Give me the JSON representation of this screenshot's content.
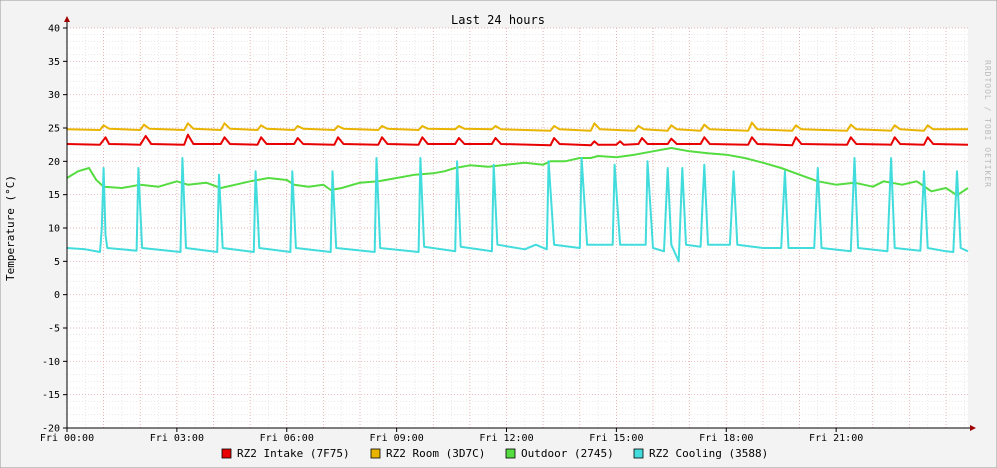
{
  "chart_data": {
    "type": "line",
    "title": "Last 24 hours",
    "ylabel": "Temperature (°C)",
    "xlabel": "",
    "watermark": "RRDTOOL / TOBI OETIKER",
    "ylim": [
      -20,
      40
    ],
    "y_ticks": [
      -20,
      -15,
      -10,
      -5,
      0,
      5,
      10,
      15,
      20,
      25,
      30,
      35,
      40
    ],
    "xlim_hours": [
      0,
      24.6
    ],
    "x_ticks": [
      {
        "hour": 0,
        "label": "Fri 00:00"
      },
      {
        "hour": 3,
        "label": "Fri 03:00"
      },
      {
        "hour": 6,
        "label": "Fri 06:00"
      },
      {
        "hour": 9,
        "label": "Fri 09:00"
      },
      {
        "hour": 12,
        "label": "Fri 12:00"
      },
      {
        "hour": 15,
        "label": "Fri 15:00"
      },
      {
        "hour": 18,
        "label": "Fri 18:00"
      },
      {
        "hour": 21,
        "label": "Fri 21:00"
      }
    ],
    "grid": true,
    "legend_position": "bottom",
    "series": [
      {
        "name": "RZ2 Intake (7F75)",
        "color": "#e80000",
        "points": [
          [
            0,
            22.6
          ],
          [
            0.9,
            22.5
          ],
          [
            1.05,
            23.6
          ],
          [
            1.15,
            22.6
          ],
          [
            2.0,
            22.5
          ],
          [
            2.15,
            23.8
          ],
          [
            2.3,
            22.6
          ],
          [
            3.2,
            22.5
          ],
          [
            3.3,
            24.0
          ],
          [
            3.45,
            22.6
          ],
          [
            4.2,
            22.6
          ],
          [
            4.3,
            23.6
          ],
          [
            4.45,
            22.6
          ],
          [
            5.2,
            22.5
          ],
          [
            5.3,
            23.6
          ],
          [
            5.45,
            22.6
          ],
          [
            6.2,
            22.6
          ],
          [
            6.3,
            23.5
          ],
          [
            6.45,
            22.6
          ],
          [
            7.3,
            22.5
          ],
          [
            7.4,
            23.6
          ],
          [
            7.55,
            22.6
          ],
          [
            8.5,
            22.5
          ],
          [
            8.6,
            23.6
          ],
          [
            8.75,
            22.6
          ],
          [
            9.6,
            22.5
          ],
          [
            9.7,
            23.6
          ],
          [
            9.85,
            22.6
          ],
          [
            10.6,
            22.6
          ],
          [
            10.7,
            23.5
          ],
          [
            10.85,
            22.6
          ],
          [
            11.6,
            22.6
          ],
          [
            11.7,
            23.5
          ],
          [
            11.85,
            22.6
          ],
          [
            13.2,
            22.4
          ],
          [
            13.3,
            23.5
          ],
          [
            13.45,
            22.6
          ],
          [
            14.3,
            22.4
          ],
          [
            14.4,
            23.0
          ],
          [
            14.5,
            22.5
          ],
          [
            15.0,
            22.5
          ],
          [
            15.1,
            23.0
          ],
          [
            15.2,
            22.5
          ],
          [
            15.6,
            22.6
          ],
          [
            15.7,
            23.5
          ],
          [
            15.85,
            22.6
          ],
          [
            16.4,
            22.6
          ],
          [
            16.5,
            23.4
          ],
          [
            16.65,
            22.6
          ],
          [
            17.3,
            22.6
          ],
          [
            17.4,
            23.6
          ],
          [
            17.55,
            22.6
          ],
          [
            18.6,
            22.5
          ],
          [
            18.7,
            23.6
          ],
          [
            18.85,
            22.6
          ],
          [
            19.8,
            22.4
          ],
          [
            19.9,
            23.6
          ],
          [
            20.05,
            22.6
          ],
          [
            21.3,
            22.5
          ],
          [
            21.4,
            23.6
          ],
          [
            21.55,
            22.6
          ],
          [
            22.5,
            22.5
          ],
          [
            22.6,
            23.6
          ],
          [
            22.75,
            22.6
          ],
          [
            23.4,
            22.5
          ],
          [
            23.5,
            23.6
          ],
          [
            23.65,
            22.6
          ],
          [
            24.6,
            22.5
          ]
        ]
      },
      {
        "name": "RZ2 Room (3D7C)",
        "color": "#e8b400",
        "points": [
          [
            0,
            24.8
          ],
          [
            0.9,
            24.7
          ],
          [
            1.0,
            25.4
          ],
          [
            1.15,
            24.9
          ],
          [
            2.0,
            24.7
          ],
          [
            2.1,
            25.5
          ],
          [
            2.25,
            24.9
          ],
          [
            3.2,
            24.7
          ],
          [
            3.3,
            25.7
          ],
          [
            3.45,
            24.9
          ],
          [
            4.2,
            24.7
          ],
          [
            4.3,
            25.7
          ],
          [
            4.45,
            24.9
          ],
          [
            5.2,
            24.7
          ],
          [
            5.3,
            25.4
          ],
          [
            5.45,
            24.9
          ],
          [
            6.2,
            24.7
          ],
          [
            6.3,
            25.3
          ],
          [
            6.45,
            24.9
          ],
          [
            7.3,
            24.7
          ],
          [
            7.4,
            25.3
          ],
          [
            7.55,
            24.9
          ],
          [
            8.5,
            24.7
          ],
          [
            8.6,
            25.3
          ],
          [
            8.75,
            24.9
          ],
          [
            9.6,
            24.7
          ],
          [
            9.7,
            25.3
          ],
          [
            9.85,
            24.9
          ],
          [
            10.6,
            24.8
          ],
          [
            10.7,
            25.3
          ],
          [
            10.85,
            24.9
          ],
          [
            11.6,
            24.8
          ],
          [
            11.7,
            25.3
          ],
          [
            11.85,
            24.8
          ],
          [
            13.2,
            24.6
          ],
          [
            13.3,
            25.3
          ],
          [
            13.45,
            24.8
          ],
          [
            14.3,
            24.6
          ],
          [
            14.4,
            25.7
          ],
          [
            14.55,
            24.8
          ],
          [
            15.5,
            24.6
          ],
          [
            15.6,
            25.3
          ],
          [
            15.75,
            24.8
          ],
          [
            16.4,
            24.6
          ],
          [
            16.5,
            25.4
          ],
          [
            16.65,
            24.8
          ],
          [
            17.3,
            24.6
          ],
          [
            17.4,
            25.5
          ],
          [
            17.55,
            24.8
          ],
          [
            18.6,
            24.6
          ],
          [
            18.7,
            25.8
          ],
          [
            18.85,
            24.8
          ],
          [
            19.8,
            24.6
          ],
          [
            19.9,
            25.4
          ],
          [
            20.05,
            24.8
          ],
          [
            21.3,
            24.6
          ],
          [
            21.4,
            25.5
          ],
          [
            21.55,
            24.8
          ],
          [
            22.5,
            24.6
          ],
          [
            22.6,
            25.4
          ],
          [
            22.75,
            24.8
          ],
          [
            23.4,
            24.6
          ],
          [
            23.5,
            25.4
          ],
          [
            23.65,
            24.8
          ],
          [
            24.6,
            24.8
          ]
        ]
      },
      {
        "name": "Outdoor (2745)",
        "color": "#54dc40",
        "points": [
          [
            0,
            17.5
          ],
          [
            0.3,
            18.5
          ],
          [
            0.6,
            19.0
          ],
          [
            0.8,
            17.2
          ],
          [
            1.0,
            16.2
          ],
          [
            1.5,
            16.0
          ],
          [
            2.0,
            16.5
          ],
          [
            2.5,
            16.2
          ],
          [
            3.0,
            17.0
          ],
          [
            3.3,
            16.5
          ],
          [
            3.8,
            16.8
          ],
          [
            4.2,
            16.0
          ],
          [
            4.6,
            16.5
          ],
          [
            5.0,
            17.0
          ],
          [
            5.5,
            17.5
          ],
          [
            6.0,
            17.2
          ],
          [
            6.2,
            16.5
          ],
          [
            6.6,
            16.2
          ],
          [
            7.0,
            16.5
          ],
          [
            7.2,
            15.7
          ],
          [
            7.5,
            16.0
          ],
          [
            8.0,
            16.8
          ],
          [
            8.5,
            17.0
          ],
          [
            9.0,
            17.5
          ],
          [
            9.5,
            18.0
          ],
          [
            10.0,
            18.2
          ],
          [
            10.3,
            18.5
          ],
          [
            10.6,
            19.0
          ],
          [
            11.0,
            19.4
          ],
          [
            11.5,
            19.2
          ],
          [
            12.0,
            19.5
          ],
          [
            12.5,
            19.8
          ],
          [
            13.0,
            19.5
          ],
          [
            13.2,
            20.0
          ],
          [
            13.6,
            20.0
          ],
          [
            14.0,
            20.5
          ],
          [
            14.3,
            20.5
          ],
          [
            14.5,
            20.8
          ],
          [
            15.0,
            20.6
          ],
          [
            15.5,
            21.0
          ],
          [
            16.0,
            21.5
          ],
          [
            16.5,
            22.0
          ],
          [
            17.0,
            21.5
          ],
          [
            17.5,
            21.2
          ],
          [
            18.0,
            21.0
          ],
          [
            18.5,
            20.5
          ],
          [
            19.0,
            19.8
          ],
          [
            19.5,
            19.0
          ],
          [
            20.0,
            18.0
          ],
          [
            20.5,
            17.0
          ],
          [
            21.0,
            16.5
          ],
          [
            21.5,
            16.8
          ],
          [
            22.0,
            16.2
          ],
          [
            22.3,
            17.0
          ],
          [
            22.8,
            16.5
          ],
          [
            23.2,
            17.0
          ],
          [
            23.6,
            15.5
          ],
          [
            24.0,
            16.0
          ],
          [
            24.3,
            14.9
          ],
          [
            24.6,
            16.0
          ]
        ]
      },
      {
        "name": "RZ2 Cooling (3588)",
        "color": "#42dcdc",
        "points": [
          [
            0,
            7.0
          ],
          [
            0.5,
            6.8
          ],
          [
            0.9,
            6.4
          ],
          [
            0.95,
            10.0
          ],
          [
            1.0,
            19.0
          ],
          [
            1.05,
            9.0
          ],
          [
            1.1,
            7.0
          ],
          [
            1.9,
            6.6
          ],
          [
            1.95,
            19.0
          ],
          [
            2.05,
            7.0
          ],
          [
            3.1,
            6.4
          ],
          [
            3.15,
            20.5
          ],
          [
            3.25,
            7.0
          ],
          [
            4.1,
            6.4
          ],
          [
            4.15,
            18.0
          ],
          [
            4.25,
            7.0
          ],
          [
            5.1,
            6.4
          ],
          [
            5.15,
            18.5
          ],
          [
            5.25,
            7.0
          ],
          [
            6.1,
            6.4
          ],
          [
            6.15,
            18.5
          ],
          [
            6.25,
            7.0
          ],
          [
            7.2,
            6.4
          ],
          [
            7.25,
            18.5
          ],
          [
            7.35,
            7.0
          ],
          [
            8.4,
            6.4
          ],
          [
            8.45,
            20.5
          ],
          [
            8.55,
            7.0
          ],
          [
            9.6,
            6.4
          ],
          [
            9.65,
            20.5
          ],
          [
            9.75,
            7.2
          ],
          [
            10.6,
            6.5
          ],
          [
            10.65,
            20.0
          ],
          [
            10.75,
            7.2
          ],
          [
            11.6,
            6.5
          ],
          [
            11.65,
            19.5
          ],
          [
            11.75,
            7.5
          ],
          [
            12.5,
            6.8
          ],
          [
            12.8,
            7.5
          ],
          [
            13.1,
            6.8
          ],
          [
            13.15,
            20.0
          ],
          [
            13.3,
            7.5
          ],
          [
            14.0,
            7.0
          ],
          [
            14.05,
            20.5
          ],
          [
            14.2,
            7.5
          ],
          [
            14.9,
            7.5
          ],
          [
            14.95,
            19.5
          ],
          [
            15.1,
            7.5
          ],
          [
            15.8,
            7.5
          ],
          [
            15.85,
            20.0
          ],
          [
            16.0,
            7.0
          ],
          [
            16.3,
            6.5
          ],
          [
            16.4,
            19.0
          ],
          [
            16.5,
            7.5
          ],
          [
            16.7,
            5.0
          ],
          [
            16.8,
            19.0
          ],
          [
            16.9,
            7.5
          ],
          [
            17.3,
            7.2
          ],
          [
            17.4,
            19.5
          ],
          [
            17.5,
            7.5
          ],
          [
            18.1,
            7.5
          ],
          [
            18.2,
            18.5
          ],
          [
            18.3,
            7.5
          ],
          [
            19.0,
            7.0
          ],
          [
            19.5,
            7.0
          ],
          [
            19.6,
            18.5
          ],
          [
            19.7,
            7.0
          ],
          [
            20.4,
            7.0
          ],
          [
            20.5,
            19.0
          ],
          [
            20.6,
            7.0
          ],
          [
            21.4,
            6.5
          ],
          [
            21.5,
            20.5
          ],
          [
            21.6,
            7.0
          ],
          [
            22.4,
            6.5
          ],
          [
            22.5,
            20.5
          ],
          [
            22.6,
            7.0
          ],
          [
            23.3,
            6.6
          ],
          [
            23.4,
            18.5
          ],
          [
            23.5,
            7.0
          ],
          [
            24.0,
            6.5
          ],
          [
            24.2,
            6.4
          ],
          [
            24.3,
            18.5
          ],
          [
            24.4,
            7.0
          ],
          [
            24.6,
            6.5
          ]
        ]
      }
    ]
  }
}
